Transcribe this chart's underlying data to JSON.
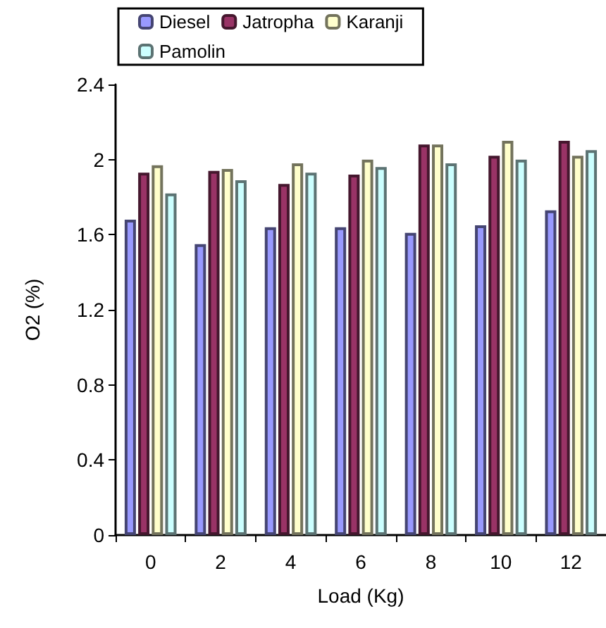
{
  "chart_data": {
    "type": "bar",
    "xlabel": "Load (Kg)",
    "ylabel": "O2 (%)",
    "categories": [
      "0",
      "2",
      "4",
      "6",
      "8",
      "10",
      "12"
    ],
    "series": [
      {
        "name": "Diesel",
        "color": "#9999ff",
        "values": [
          1.68,
          1.55,
          1.64,
          1.64,
          1.61,
          1.65,
          1.73
        ]
      },
      {
        "name": "Jatropha",
        "color": "#993366",
        "values": [
          1.93,
          1.94,
          1.87,
          1.92,
          2.08,
          2.02,
          2.1
        ]
      },
      {
        "name": "Karanji",
        "color": "#ffffcc",
        "values": [
          1.97,
          1.95,
          1.98,
          2.0,
          2.08,
          2.1,
          2.02
        ]
      },
      {
        "name": "Pamolin",
        "color": "#ccffff",
        "values": [
          1.82,
          1.89,
          1.93,
          1.96,
          1.98,
          2.0,
          2.05
        ]
      }
    ],
    "ylim": [
      0,
      2.4
    ],
    "yticks": [
      0,
      0.4,
      0.8,
      1.2,
      1.6,
      2,
      2.4
    ],
    "grid": false,
    "legend": "top"
  }
}
